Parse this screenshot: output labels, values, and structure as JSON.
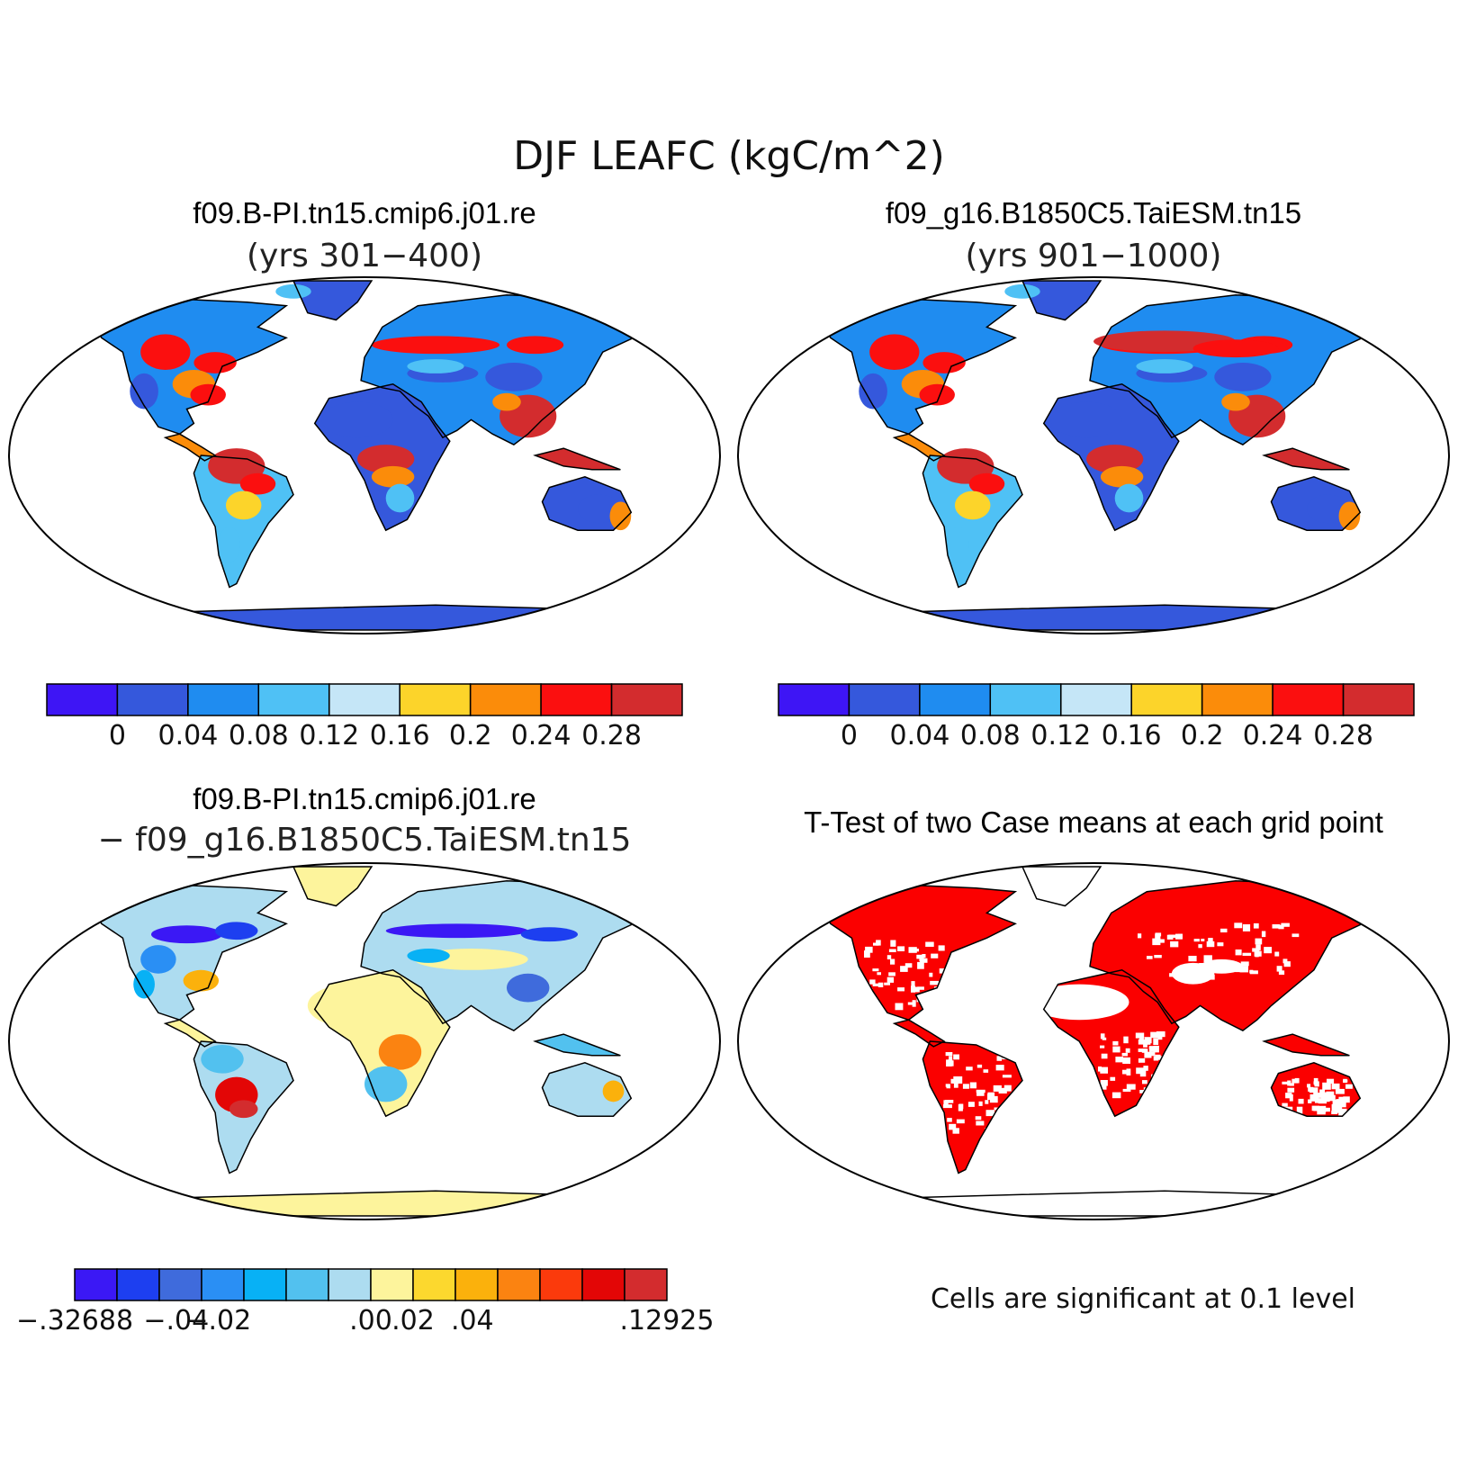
{
  "figure": {
    "title": "DJF LEAFC (kgC/m^2)"
  },
  "panels": [
    {
      "id": "case1",
      "title": "f09.B-PI.tn15.cmip6.j01.re",
      "subtitle": "(yrs 301−400)"
    },
    {
      "id": "case2",
      "title": "f09_g16.B1850C5.TaiESM.tn15",
      "subtitle": "(yrs 901−1000)"
    },
    {
      "id": "difference",
      "title": "f09.B-PI.tn15.cmip6.j01.re",
      "subtitle": "− f09_g16.B1850C5.TaiESM.tn15"
    },
    {
      "id": "ttest",
      "title": "T-Test of two Case means at each grid point",
      "note": "Cells are significant at 0.1 level"
    }
  ],
  "colors": {
    "abs_bins": [
      "#3e15f5",
      "#3558dc",
      "#1f8cf0",
      "#4fc1f5",
      "#c5e6f7",
      "#fcd42a",
      "#fb8c0a",
      "#fb0f0f",
      "#d32c2e"
    ],
    "diff_bins": [
      "#3b18f5",
      "#1d3ff0",
      "#3f6bdc",
      "#2a8ff4",
      "#08b1f5",
      "#52c1ef",
      "#addcf0",
      "#fdf49c",
      "#fcd82e",
      "#fbb10c",
      "#fb8311",
      "#fb3a0c",
      "#e30606",
      "#d32c2e"
    ],
    "significant": "#fb0000"
  },
  "chart_data": [
    {
      "type": "heatmap",
      "title": "f09.B-PI.tn15.cmip6.j01.re",
      "subtitle": "(yrs 301−400)",
      "colorbar_ticks": [
        "0",
        "0.04",
        "0.08",
        "0.12",
        "0.16",
        "0.2",
        "0.24",
        "0.28"
      ]
    },
    {
      "type": "heatmap",
      "title": "f09_g16.B1850C5.TaiESM.tn15",
      "subtitle": "(yrs 901−1000)",
      "colorbar_ticks": [
        "0",
        "0.04",
        "0.08",
        "0.12",
        "0.16",
        "0.2",
        "0.24",
        "0.28"
      ]
    },
    {
      "type": "heatmap",
      "title": "f09.B-PI.tn15.cmip6.j01.re",
      "subtitle": "− f09_g16.B1850C5.TaiESM.tn15",
      "colorbar_ticks": [
        "−.32688",
        "−.04",
        "−.02",
        ".00",
        ".02",
        ".04",
        ".12925"
      ]
    },
    {
      "type": "heatmap",
      "title": "T-Test of two Case means at each grid point",
      "note": "Cells are significant at 0.1 level"
    }
  ]
}
